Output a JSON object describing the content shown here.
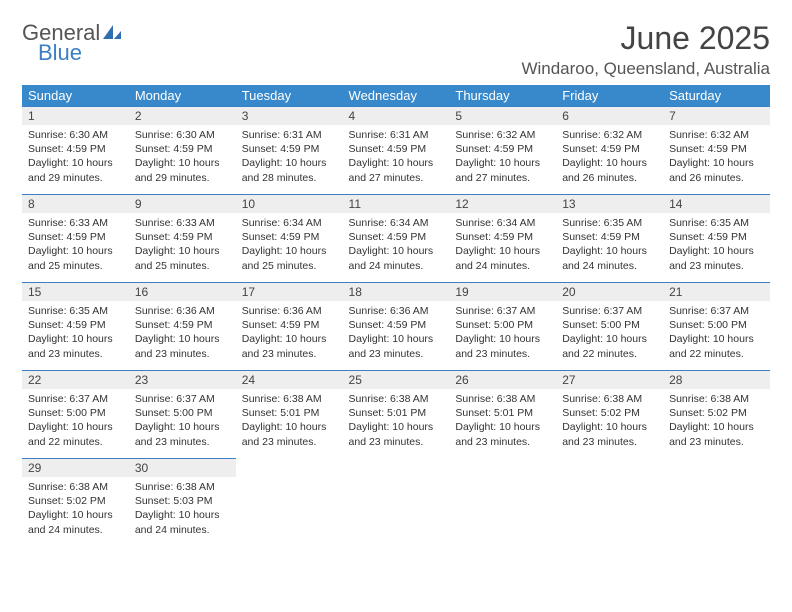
{
  "logo": {
    "text1": "General",
    "text2": "Blue",
    "icon_color": "#2f6fb0"
  },
  "title": "June 2025",
  "location": "Windaroo, Queensland, Australia",
  "colors": {
    "header_bg": "#3889cc",
    "header_text": "#ffffff",
    "daynum_bg": "#eeeeee",
    "daynum_border": "#3b7fc4",
    "body_text": "#333333"
  },
  "dayHeaders": [
    "Sunday",
    "Monday",
    "Tuesday",
    "Wednesday",
    "Thursday",
    "Friday",
    "Saturday"
  ],
  "firstDayOffset": 0,
  "daysInMonth": 30,
  "days": [
    {
      "n": 1,
      "sunrise": "6:30 AM",
      "sunset": "4:59 PM",
      "daylight": "10 hours and 29 minutes."
    },
    {
      "n": 2,
      "sunrise": "6:30 AM",
      "sunset": "4:59 PM",
      "daylight": "10 hours and 29 minutes."
    },
    {
      "n": 3,
      "sunrise": "6:31 AM",
      "sunset": "4:59 PM",
      "daylight": "10 hours and 28 minutes."
    },
    {
      "n": 4,
      "sunrise": "6:31 AM",
      "sunset": "4:59 PM",
      "daylight": "10 hours and 27 minutes."
    },
    {
      "n": 5,
      "sunrise": "6:32 AM",
      "sunset": "4:59 PM",
      "daylight": "10 hours and 27 minutes."
    },
    {
      "n": 6,
      "sunrise": "6:32 AM",
      "sunset": "4:59 PM",
      "daylight": "10 hours and 26 minutes."
    },
    {
      "n": 7,
      "sunrise": "6:32 AM",
      "sunset": "4:59 PM",
      "daylight": "10 hours and 26 minutes."
    },
    {
      "n": 8,
      "sunrise": "6:33 AM",
      "sunset": "4:59 PM",
      "daylight": "10 hours and 25 minutes."
    },
    {
      "n": 9,
      "sunrise": "6:33 AM",
      "sunset": "4:59 PM",
      "daylight": "10 hours and 25 minutes."
    },
    {
      "n": 10,
      "sunrise": "6:34 AM",
      "sunset": "4:59 PM",
      "daylight": "10 hours and 25 minutes."
    },
    {
      "n": 11,
      "sunrise": "6:34 AM",
      "sunset": "4:59 PM",
      "daylight": "10 hours and 24 minutes."
    },
    {
      "n": 12,
      "sunrise": "6:34 AM",
      "sunset": "4:59 PM",
      "daylight": "10 hours and 24 minutes."
    },
    {
      "n": 13,
      "sunrise": "6:35 AM",
      "sunset": "4:59 PM",
      "daylight": "10 hours and 24 minutes."
    },
    {
      "n": 14,
      "sunrise": "6:35 AM",
      "sunset": "4:59 PM",
      "daylight": "10 hours and 23 minutes."
    },
    {
      "n": 15,
      "sunrise": "6:35 AM",
      "sunset": "4:59 PM",
      "daylight": "10 hours and 23 minutes."
    },
    {
      "n": 16,
      "sunrise": "6:36 AM",
      "sunset": "4:59 PM",
      "daylight": "10 hours and 23 minutes."
    },
    {
      "n": 17,
      "sunrise": "6:36 AM",
      "sunset": "4:59 PM",
      "daylight": "10 hours and 23 minutes."
    },
    {
      "n": 18,
      "sunrise": "6:36 AM",
      "sunset": "4:59 PM",
      "daylight": "10 hours and 23 minutes."
    },
    {
      "n": 19,
      "sunrise": "6:37 AM",
      "sunset": "5:00 PM",
      "daylight": "10 hours and 23 minutes."
    },
    {
      "n": 20,
      "sunrise": "6:37 AM",
      "sunset": "5:00 PM",
      "daylight": "10 hours and 22 minutes."
    },
    {
      "n": 21,
      "sunrise": "6:37 AM",
      "sunset": "5:00 PM",
      "daylight": "10 hours and 22 minutes."
    },
    {
      "n": 22,
      "sunrise": "6:37 AM",
      "sunset": "5:00 PM",
      "daylight": "10 hours and 22 minutes."
    },
    {
      "n": 23,
      "sunrise": "6:37 AM",
      "sunset": "5:00 PM",
      "daylight": "10 hours and 23 minutes."
    },
    {
      "n": 24,
      "sunrise": "6:38 AM",
      "sunset": "5:01 PM",
      "daylight": "10 hours and 23 minutes."
    },
    {
      "n": 25,
      "sunrise": "6:38 AM",
      "sunset": "5:01 PM",
      "daylight": "10 hours and 23 minutes."
    },
    {
      "n": 26,
      "sunrise": "6:38 AM",
      "sunset": "5:01 PM",
      "daylight": "10 hours and 23 minutes."
    },
    {
      "n": 27,
      "sunrise": "6:38 AM",
      "sunset": "5:02 PM",
      "daylight": "10 hours and 23 minutes."
    },
    {
      "n": 28,
      "sunrise": "6:38 AM",
      "sunset": "5:02 PM",
      "daylight": "10 hours and 23 minutes."
    },
    {
      "n": 29,
      "sunrise": "6:38 AM",
      "sunset": "5:02 PM",
      "daylight": "10 hours and 24 minutes."
    },
    {
      "n": 30,
      "sunrise": "6:38 AM",
      "sunset": "5:03 PM",
      "daylight": "10 hours and 24 minutes."
    }
  ],
  "labels": {
    "sunrise": "Sunrise:",
    "sunset": "Sunset:",
    "daylight": "Daylight:"
  }
}
